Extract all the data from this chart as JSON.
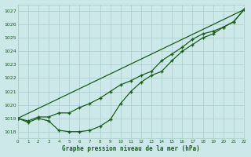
{
  "title": "Graphe pression niveau de la mer (hPa)",
  "background_color": "#cce8e8",
  "grid_color": "#aacccc",
  "line_color": "#1a5c1a",
  "x_min": 0,
  "x_max": 22,
  "y_min": 1017.5,
  "y_max": 1027.5,
  "y_ticks": [
    1018,
    1019,
    1020,
    1021,
    1022,
    1023,
    1024,
    1025,
    1026,
    1027
  ],
  "x_ticks": [
    0,
    1,
    2,
    3,
    4,
    5,
    6,
    7,
    8,
    9,
    10,
    11,
    12,
    13,
    14,
    15,
    16,
    17,
    18,
    19,
    20,
    21,
    22
  ],
  "curve_bottom": {
    "x": [
      0,
      1,
      2,
      3,
      4,
      5,
      6,
      7,
      8,
      9,
      10,
      11,
      12,
      13,
      14,
      15,
      16,
      17,
      18,
      19,
      20,
      21,
      22
    ],
    "y": [
      1019.0,
      1018.7,
      1019.0,
      1018.8,
      1018.1,
      1018.0,
      1018.0,
      1018.1,
      1018.4,
      1018.9,
      1020.1,
      1021.0,
      1021.7,
      1022.2,
      1022.5,
      1023.3,
      1024.0,
      1024.5,
      1025.0,
      1025.3,
      1025.8,
      1026.2,
      1027.1
    ]
  },
  "curve_top": {
    "x": [
      0,
      1,
      2,
      3,
      4,
      5,
      6,
      7,
      8,
      9,
      10,
      11,
      12,
      13,
      14,
      15,
      16,
      17,
      18,
      19,
      20,
      21,
      22
    ],
    "y": [
      1019.0,
      1018.8,
      1019.1,
      1019.1,
      1019.4,
      1019.4,
      1019.8,
      1020.1,
      1020.5,
      1021.0,
      1021.5,
      1021.8,
      1022.2,
      1022.5,
      1023.3,
      1023.8,
      1024.3,
      1024.9,
      1025.3,
      1025.5,
      1025.8,
      1026.2,
      1027.1
    ]
  },
  "curve_straight": {
    "x": [
      0,
      22
    ],
    "y": [
      1019.0,
      1027.1
    ]
  }
}
